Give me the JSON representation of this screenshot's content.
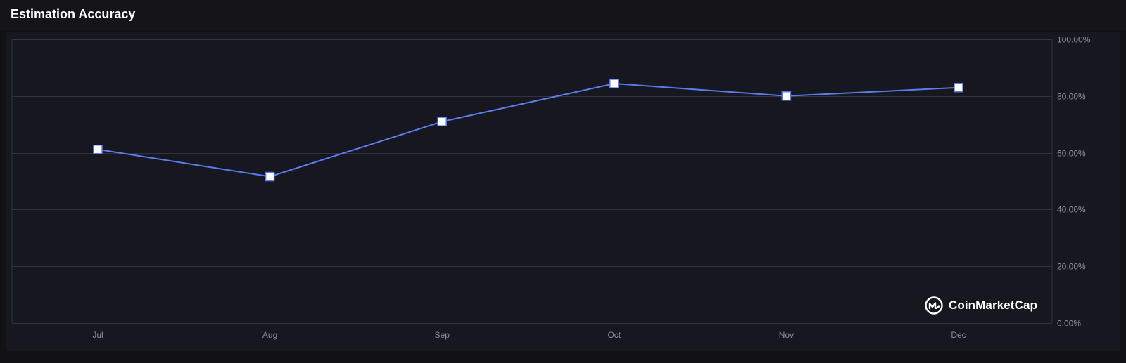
{
  "header": {
    "title": "Estimation Accuracy"
  },
  "watermark": {
    "text": "CoinMarketCap"
  },
  "colors": {
    "line": "#5b7cf0",
    "marker_fill": "#ffffff",
    "grid": "#2f3343",
    "axis_text": "#8a8f9e",
    "background": "#17181f"
  },
  "chart_data": {
    "type": "line",
    "title": "Estimation Accuracy",
    "categories": [
      "Jul",
      "Aug",
      "Sep",
      "Oct",
      "Nov",
      "Dec"
    ],
    "series": [
      {
        "values": [
          61.2,
          51.6,
          71.0,
          84.4,
          80.0,
          83.0
        ]
      }
    ],
    "ylim": [
      0,
      100
    ],
    "y_ticks": [
      0,
      20,
      40,
      60,
      80,
      100
    ],
    "y_tick_labels": [
      "0.00%",
      "20.00%",
      "40.00%",
      "60.00%",
      "80.00%",
      "100.00%"
    ],
    "y_axis_position": "right",
    "grid": true,
    "legend": "none",
    "marker": "square"
  }
}
